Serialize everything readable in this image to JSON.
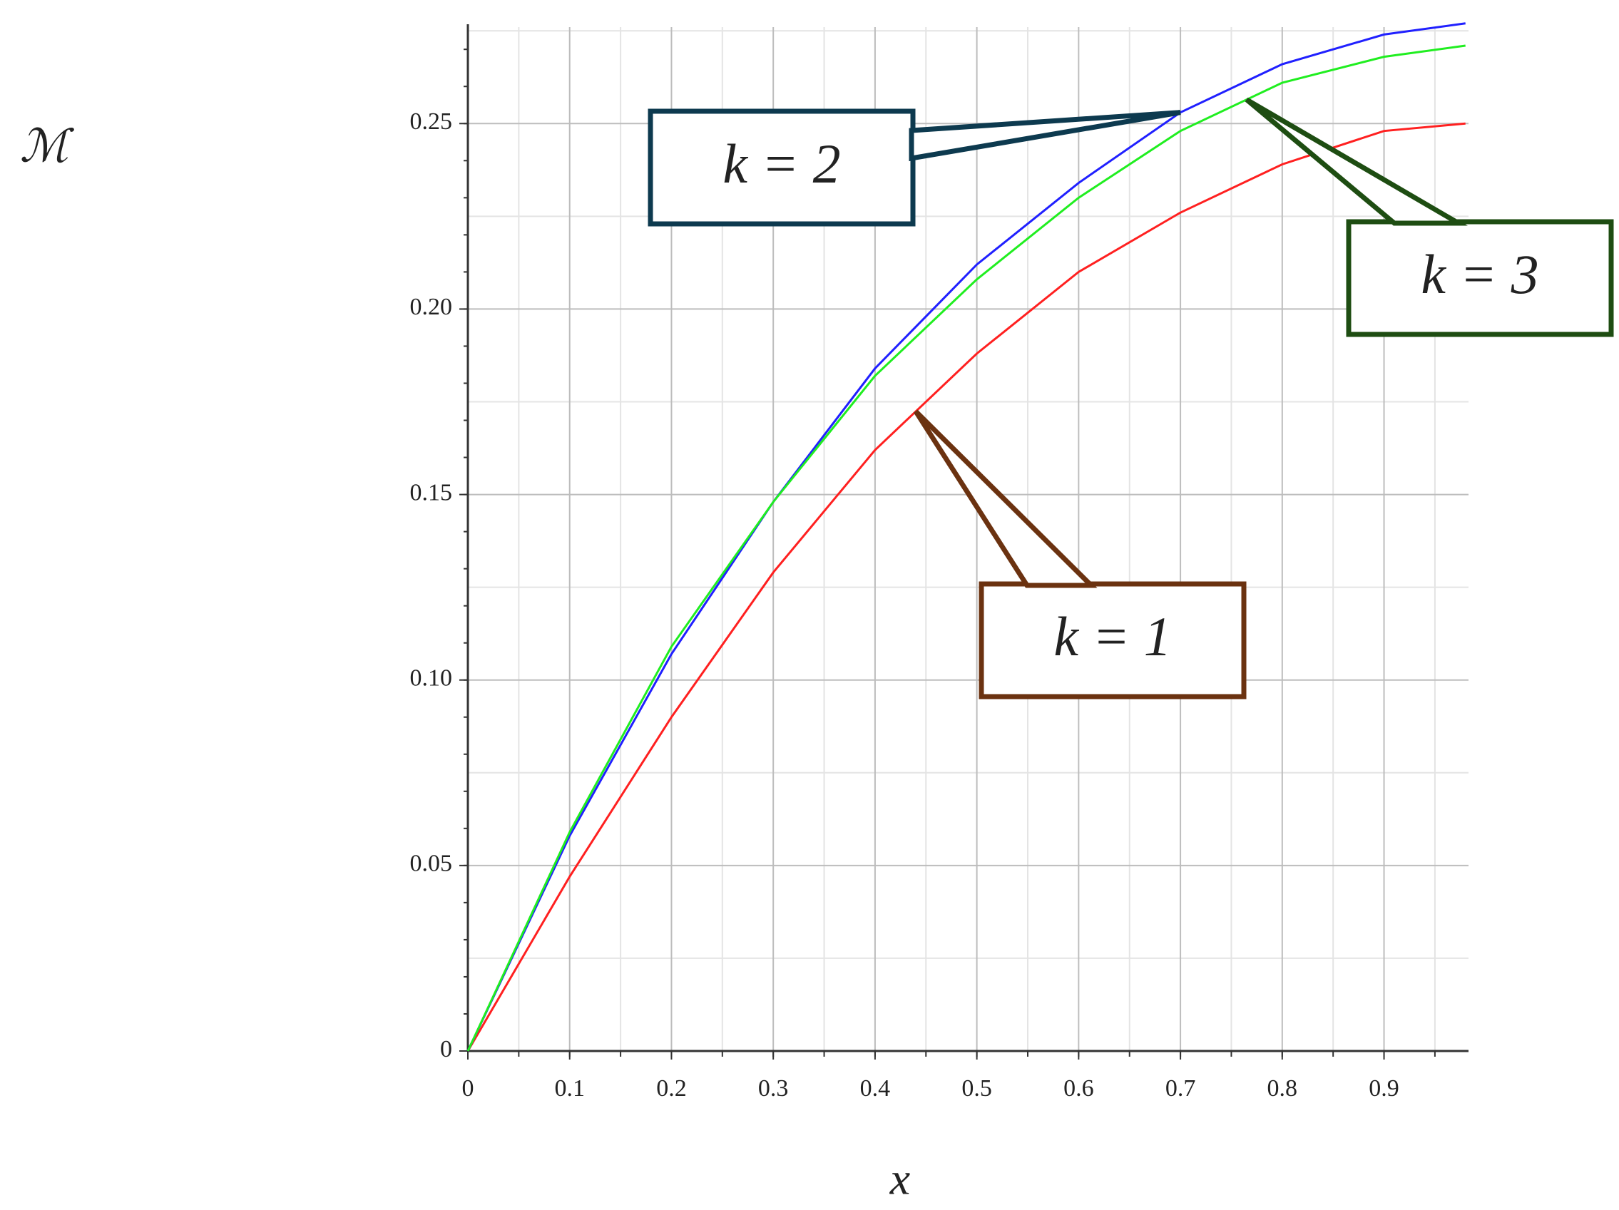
{
  "chart_data": {
    "type": "line",
    "xlabel": "x",
    "ylabel": "ℳ",
    "x": [
      0,
      0.1,
      0.2,
      0.3,
      0.4,
      0.5,
      0.6,
      0.7,
      0.8,
      0.9,
      0.98
    ],
    "series": [
      {
        "name": "k = 1",
        "color": "#ff2020",
        "values": [
          0,
          0.047,
          0.09,
          0.129,
          0.162,
          0.188,
          0.21,
          0.226,
          0.239,
          0.248,
          0.25
        ]
      },
      {
        "name": "k = 2",
        "color": "#2020ff",
        "values": [
          0,
          0.058,
          0.107,
          0.148,
          0.184,
          0.212,
          0.234,
          0.253,
          0.266,
          0.274,
          0.277
        ]
      },
      {
        "name": "k = 3",
        "color": "#20ee20",
        "values": [
          0,
          0.059,
          0.109,
          0.148,
          0.182,
          0.208,
          0.23,
          0.248,
          0.261,
          0.268,
          0.271
        ]
      }
    ],
    "xlim": [
      0,
      0.983
    ],
    "ylim": [
      0,
      0.276
    ],
    "xticks": [
      0,
      0.1,
      0.2,
      0.3,
      0.4,
      0.5,
      0.6,
      0.7,
      0.8,
      0.9
    ],
    "yticks": [
      0,
      0.05,
      {
        "value": 0.1,
        "label": "0.10"
      },
      0.15,
      {
        "value": 0.2,
        "label": "0.20"
      },
      0.25
    ],
    "grid": true
  }
}
